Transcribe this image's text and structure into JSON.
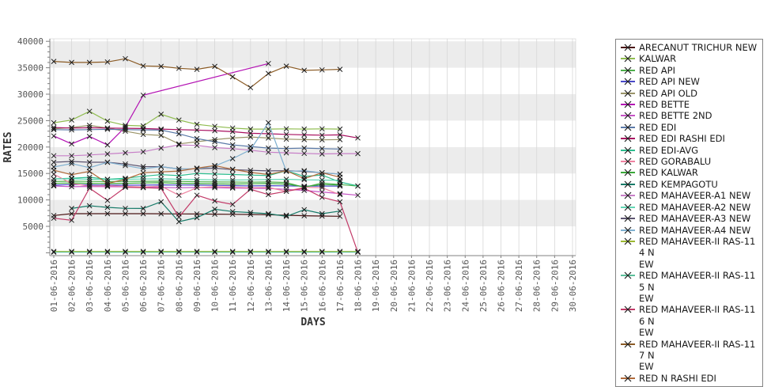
{
  "chart_data": {
    "type": "line",
    "title": "",
    "xlabel": "DAYS",
    "ylabel": "RATES",
    "ylim": [
      0,
      40000
    ],
    "ytick_step": 5000,
    "ytick_labels": [
      "5000",
      "10000",
      "15000",
      "20000",
      "25000",
      "30000",
      "35000",
      "40000"
    ],
    "x_tick_labels": [
      "01-06-2016",
      "02-06-2016",
      "03-06-2016",
      "04-06-2016",
      "05-06-2016",
      "06-06-2016",
      "07-06-2016",
      "08-06-2016",
      "09-06-2016",
      "10-06-2016",
      "11-06-2016",
      "12-06-2016",
      "13-06-2016",
      "14-06-2016",
      "15-06-2016",
      "16-06-2016",
      "17-06-2016",
      "18-06-2016",
      "19-06-2016",
      "20-06-2016",
      "21-06-2016",
      "22-06-2016",
      "23-06-2016",
      "24-06-2016",
      "25-06-2016",
      "26-06-2016",
      "27-06-2016",
      "28-06-2016",
      "29-06-2016",
      "30-06-2016"
    ],
    "grid": "vertical line per day, alternating horizontal gray bands every 5000",
    "legend_position": "right",
    "marker": "black x at every data point",
    "series": [
      {
        "name": "ARECANUT TRICHUR NEW",
        "color": "#4a1414",
        "values": [
          7050,
          7400,
          7400,
          7400,
          7400,
          7400,
          7380,
          7350,
          7330,
          7300,
          7280,
          7250,
          7200,
          7100,
          7000,
          6950,
          6900,
          null
        ]
      },
      {
        "name": "KALWAR",
        "color": "#8fbc4f",
        "values": [
          24600,
          25100,
          26750,
          24900,
          24100,
          24000,
          26200,
          25100,
          24300,
          23900,
          23600,
          23400,
          23400,
          23450,
          23400,
          23450,
          23400,
          null
        ]
      },
      {
        "name": "RED API",
        "color": "#4daf4a",
        "values": [
          13480,
          13550,
          13500,
          13450,
          13500,
          13520,
          13550,
          13500,
          13450,
          13400,
          13380,
          13350,
          13400,
          13300,
          12380,
          13200,
          12900,
          12600
        ]
      },
      {
        "name": "RED API NEW",
        "color": "#4a4ac8",
        "values": [
          12800,
          12900,
          12850,
          12800,
          12780,
          12800,
          12850,
          12820,
          12800,
          12750,
          12700,
          12650,
          12700,
          12650,
          12600,
          12620,
          12600,
          null
        ]
      },
      {
        "name": "RED API OLD",
        "color": "#9a9468",
        "values": [
          23450,
          23700,
          24100,
          23600,
          23000,
          22400,
          22200,
          20600,
          21000,
          21400,
          21700,
          21900,
          21700,
          21500,
          21400,
          21360,
          21400,
          null
        ]
      },
      {
        "name": "RED BETTE",
        "color": "#b312b3",
        "values": [
          22100,
          20600,
          22000,
          20400,
          23800,
          29800,
          null,
          null,
          null,
          null,
          null,
          null,
          35800,
          null,
          null,
          null,
          null,
          null
        ]
      },
      {
        "name": "RED BETTE 2ND",
        "color": "#c553c5",
        "values": [
          12630,
          12500,
          12550,
          12500,
          12480,
          12400,
          12350,
          12300,
          12350,
          12300,
          12250,
          12200,
          12150,
          12000,
          11800,
          11500,
          11200,
          10880
        ]
      },
      {
        "name": "RED EDI",
        "color": "#5b7aa8",
        "values": [
          23300,
          23250,
          23300,
          23350,
          23300,
          23250,
          23200,
          22500,
          21600,
          21000,
          20400,
          20100,
          19800,
          19720,
          19800,
          19700,
          19620,
          null
        ]
      },
      {
        "name": "RED EDI RASHI EDI",
        "color": "#a81060",
        "values": [
          23700,
          23600,
          23650,
          23600,
          23550,
          23500,
          23400,
          23300,
          23200,
          23100,
          22900,
          22600,
          22510,
          22400,
          22300,
          22250,
          22300,
          21720
        ]
      },
      {
        "name": "RED EDI-AVG",
        "color": "#2cbd8e",
        "values": [
          13980,
          14100,
          14280,
          13900,
          14100,
          14480,
          14770,
          14600,
          15000,
          14900,
          14800,
          14700,
          14600,
          15530,
          14450,
          14700,
          13380,
          12630
        ]
      },
      {
        "name": "RED GORABALU",
        "color": "#ef82a0",
        "values": [
          14880,
          13100,
          12600,
          12700,
          12550,
          12450,
          12600,
          10880,
          12300,
          12500,
          12400,
          12300,
          12350,
          11630,
          12400,
          12300,
          11000,
          null
        ]
      },
      {
        "name": "RED KALWAR",
        "color": "#3aa83a",
        "values": [
          13130,
          13200,
          13150,
          13100,
          13150,
          13200,
          13250,
          13150,
          13100,
          13050,
          13000,
          13050,
          13100,
          13000,
          12500,
          12900,
          12800,
          null
        ]
      },
      {
        "name": "RED KEMPAGOTU",
        "color": "#167a68",
        "values": [
          null,
          8390,
          8890,
          8600,
          8400,
          8390,
          9640,
          5890,
          6640,
          8240,
          7800,
          7600,
          7390,
          6890,
          8140,
          7390,
          7890,
          null
        ]
      },
      {
        "name": "RED MAHAVEER-A1 NEW",
        "color": "#c77fc7",
        "values": [
          18350,
          18350,
          18500,
          18700,
          18900,
          19100,
          19800,
          20400,
          20300,
          19900,
          19700,
          19400,
          19030,
          18900,
          18800,
          18700,
          18750,
          18760
        ]
      },
      {
        "name": "RED MAHAVEER-A2 NEW",
        "color": "#63d6b4",
        "values": [
          13950,
          14000,
          13900,
          13850,
          13900,
          13950,
          14000,
          13900,
          13850,
          13800,
          13750,
          13800,
          13850,
          13900,
          13800,
          13750,
          13700,
          null
        ]
      },
      {
        "name": "RED MAHAVEER-A3 NEW",
        "color": "#5c5470",
        "values": [
          17130,
          17280,
          17130,
          17130,
          16800,
          16300,
          16280,
          15850,
          15890,
          16000,
          15730,
          15600,
          15500,
          15530,
          15400,
          15140,
          14880,
          null
        ]
      },
      {
        "name": "RED MAHAVEER-A4 NEW",
        "color": "#7fb0d0",
        "values": [
          16230,
          16870,
          16100,
          17130,
          16500,
          15900,
          16280,
          15850,
          15890,
          16400,
          17800,
          19500,
          24610,
          15400,
          15530,
          15140,
          14880,
          null
        ]
      },
      {
        "name": "RED MAHAVEER-II RAS-114 NEW",
        "color": "#9db832",
        "values": [
          250,
          250,
          250,
          250,
          250,
          250,
          250,
          250,
          250,
          250,
          250,
          250,
          250,
          250,
          250,
          250,
          250,
          250
        ]
      },
      {
        "name": "RED MAHAVEER-II RAS-115 NEW",
        "color": "#5bbf9a",
        "values": [
          100,
          100,
          100,
          100,
          100,
          100,
          100,
          100,
          100,
          100,
          100,
          100,
          100,
          100,
          100,
          100,
          100,
          100
        ]
      },
      {
        "name": "RED MAHAVEER-II RAS-116 NEW",
        "color": "#c23a68",
        "values": [
          6540,
          6150,
          12230,
          9890,
          12400,
          12300,
          12200,
          6750,
          10880,
          9800,
          9140,
          12000,
          11000,
          11630,
          12200,
          10500,
          9640,
          100
        ]
      },
      {
        "name": "RED MAHAVEER-II RAS-117 NEW",
        "color": "#8a5a24",
        "values": [
          36200,
          36000,
          36000,
          36100,
          36700,
          35350,
          35250,
          34900,
          34700,
          35250,
          33300,
          31250,
          33900,
          35300,
          34500,
          34600,
          34700,
          null
        ]
      },
      {
        "name": "RED N RASHI EDI",
        "color": "#b06a3a",
        "values": [
          15620,
          14770,
          15400,
          13120,
          13900,
          15130,
          15300,
          15470,
          16000,
          16500,
          15800,
          15200,
          14800,
          15530,
          14030,
          15140,
          14300,
          null
        ]
      }
    ]
  },
  "legend": {
    "labels": [
      "ARECANUT TRICHUR NEW",
      "KALWAR",
      "RED API",
      "RED API NEW",
      "RED API OLD",
      "RED BETTE",
      "RED BETTE 2ND",
      "RED EDI",
      "RED EDI RASHI EDI",
      "RED EDI-AVG",
      "RED GORABALU",
      "RED KALWAR",
      "RED KEMPAGOTU",
      "RED MAHAVEER-A1 NEW",
      "RED MAHAVEER-A2 NEW",
      "RED MAHAVEER-A3 NEW",
      "RED MAHAVEER-A4 NEW",
      "RED MAHAVEER-II RAS-114 N\nEW",
      "RED MAHAVEER-II RAS-115 N\nEW",
      "RED MAHAVEER-II RAS-116 N\nEW",
      "RED MAHAVEER-II RAS-117 N\nEW",
      "RED N RASHI EDI"
    ]
  },
  "style": {
    "band_gray": "#ececec",
    "gridline": "#d6d6d6",
    "axis": "#808080",
    "marker": "#1c1c1c",
    "legend_border": "#848484"
  }
}
